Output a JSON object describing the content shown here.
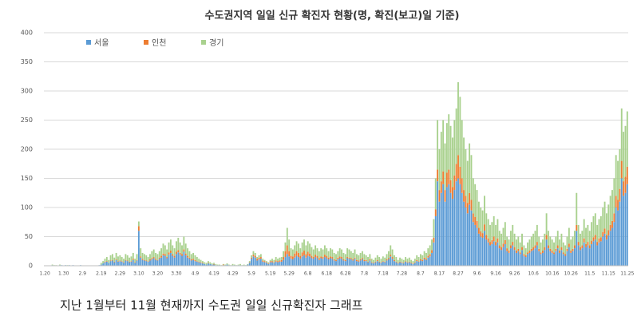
{
  "chart_data": {
    "type": "stacked_bar",
    "title": "수도권지역 일일 신규 확진자 현황(명, 확진(보고)일 기준)",
    "caption": "지난 1월부터 11월 현재까지 수도권 일일 신규확진자 그래프",
    "categories": [
      "1.20",
      null,
      null,
      null,
      null,
      null,
      null,
      null,
      null,
      null,
      "1.30",
      null,
      null,
      null,
      null,
      null,
      null,
      null,
      null,
      null,
      "2.9",
      null,
      null,
      null,
      null,
      null,
      null,
      null,
      null,
      null,
      "2.19",
      null,
      null,
      null,
      null,
      null,
      null,
      null,
      null,
      null,
      "2.29",
      null,
      null,
      null,
      null,
      null,
      null,
      null,
      null,
      null,
      "3.10",
      null,
      null,
      null,
      null,
      null,
      null,
      null,
      null,
      null,
      "3.20",
      null,
      null,
      null,
      null,
      null,
      null,
      null,
      null,
      null,
      "3.30",
      null,
      null,
      null,
      null,
      null,
      null,
      null,
      null,
      null,
      "4.9",
      null,
      null,
      null,
      null,
      null,
      null,
      null,
      null,
      null,
      "4.19",
      null,
      null,
      null,
      null,
      null,
      null,
      null,
      null,
      null,
      "4.29",
      null,
      null,
      null,
      null,
      null,
      null,
      null,
      null,
      null,
      "5.9",
      null,
      null,
      null,
      null,
      null,
      null,
      null,
      null,
      null,
      "5.19",
      null,
      null,
      null,
      null,
      null,
      null,
      null,
      null,
      null,
      "5.29",
      null,
      null,
      null,
      null,
      null,
      null,
      null,
      null,
      null,
      "6.8",
      null,
      null,
      null,
      null,
      null,
      null,
      null,
      null,
      null,
      "6.18",
      null,
      null,
      null,
      null,
      null,
      null,
      null,
      null,
      null,
      "6.28",
      null,
      null,
      null,
      null,
      null,
      null,
      null,
      null,
      null,
      "7.8",
      null,
      null,
      null,
      null,
      null,
      null,
      null,
      null,
      null,
      "7.18",
      null,
      null,
      null,
      null,
      null,
      null,
      null,
      null,
      null,
      "7.28",
      null,
      null,
      null,
      null,
      null,
      null,
      null,
      null,
      null,
      "8.7",
      null,
      null,
      null,
      null,
      null,
      null,
      null,
      null,
      null,
      "8.17",
      null,
      null,
      null,
      null,
      null,
      null,
      null,
      null,
      null,
      "8.27",
      null,
      null,
      null,
      null,
      null,
      null,
      null,
      null,
      null,
      "9.6",
      null,
      null,
      null,
      null,
      null,
      null,
      null,
      null,
      null,
      "9.16",
      null,
      null,
      null,
      null,
      null,
      null,
      null,
      null,
      null,
      "9.26",
      null,
      null,
      null,
      null,
      null,
      null,
      null,
      null,
      null,
      "10.6",
      null,
      null,
      null,
      null,
      null,
      null,
      null,
      null,
      null,
      "10.16",
      null,
      null,
      null,
      null,
      null,
      null,
      null,
      null,
      null,
      "10.26",
      null,
      null,
      null,
      null,
      null,
      null,
      null,
      null,
      null,
      "11.5",
      null,
      null,
      null,
      null,
      null,
      null,
      null,
      null,
      null,
      "11.15",
      null,
      null,
      null,
      null,
      null,
      null,
      null,
      null,
      null,
      "11.25"
    ],
    "series": [
      {
        "name": "서울",
        "color": "#5b9bd5",
        "values": [
          0,
          0,
          0,
          0,
          1,
          0,
          0,
          0,
          1,
          1,
          0,
          1,
          0,
          1,
          0,
          1,
          0,
          0,
          0,
          1,
          0,
          0,
          0,
          0,
          0,
          0,
          0,
          0,
          0,
          1,
          2,
          4,
          6,
          7,
          5,
          8,
          9,
          6,
          10,
          7,
          8,
          7,
          5,
          9,
          8,
          6,
          7,
          10,
          5,
          9,
          60,
          14,
          10,
          9,
          8,
          7,
          9,
          11,
          13,
          10,
          9,
          12,
          14,
          18,
          17,
          13,
          19,
          22,
          17,
          14,
          20,
          23,
          19,
          17,
          24,
          18,
          14,
          12,
          9,
          10,
          8,
          7,
          6,
          5,
          4,
          3,
          2,
          4,
          3,
          2,
          2,
          1,
          1,
          1,
          0,
          1,
          1,
          2,
          1,
          0,
          1,
          1,
          0,
          1,
          1,
          0,
          1,
          0,
          2,
          5,
          12,
          16,
          14,
          9,
          11,
          12,
          7,
          6,
          5,
          3,
          6,
          6,
          5,
          7,
          6,
          7,
          7,
          10,
          15,
          20,
          16,
          12,
          11,
          14,
          17,
          15,
          12,
          16,
          18,
          14,
          17,
          16,
          13,
          12,
          15,
          13,
          10,
          13,
          12,
          15,
          13,
          11,
          13,
          12,
          9,
          8,
          11,
          13,
          12,
          9,
          8,
          13,
          12,
          11,
          9,
          12,
          8,
          7,
          9,
          11,
          8,
          8,
          6,
          9,
          5,
          4,
          6,
          8,
          6,
          5,
          7,
          6,
          9,
          11,
          16,
          12,
          8,
          6,
          4,
          6,
          5,
          4,
          7,
          5,
          6,
          4,
          3,
          5,
          8,
          7,
          9,
          8,
          11,
          10,
          14,
          16,
          22,
          40,
          85,
          145,
          110,
          125,
          140,
          110,
          135,
          140,
          125,
          115,
          130,
          145,
          150,
          140,
          125,
          110,
          100,
          90,
          105,
          95,
          75,
          70,
          65,
          55,
          50,
          48,
          60,
          45,
          40,
          35,
          37,
          42,
          35,
          40,
          30,
          27,
          32,
          37,
          25,
          22,
          30,
          35,
          27,
          22,
          25,
          20,
          27,
          17,
          15,
          20,
          22,
          25,
          27,
          30,
          35,
          25,
          20,
          22,
          27,
          45,
          30,
          25,
          22,
          20,
          25,
          30,
          22,
          27,
          20,
          17,
          25,
          32,
          22,
          25,
          30,
          60,
          35,
          27,
          30,
          40,
          32,
          35,
          30,
          37,
          42,
          45,
          35,
          40,
          42,
          50,
          55,
          45,
          52,
          60,
          65,
          75,
          100,
          95,
          110,
          150,
          120,
          125,
          140
        ]
      },
      {
        "name": "인천",
        "color": "#ed7d31",
        "values": [
          0,
          0,
          0,
          0,
          0,
          0,
          0,
          0,
          0,
          0,
          0,
          0,
          0,
          0,
          0,
          0,
          0,
          0,
          0,
          0,
          0,
          0,
          0,
          0,
          0,
          0,
          0,
          0,
          0,
          0,
          0,
          0,
          1,
          1,
          0,
          1,
          1,
          1,
          1,
          1,
          1,
          1,
          1,
          1,
          1,
          1,
          1,
          2,
          1,
          1,
          8,
          2,
          2,
          1,
          1,
          1,
          2,
          2,
          2,
          2,
          1,
          2,
          3,
          3,
          3,
          2,
          4,
          4,
          3,
          3,
          4,
          4,
          3,
          3,
          4,
          3,
          3,
          2,
          2,
          2,
          2,
          1,
          1,
          1,
          1,
          0,
          0,
          1,
          0,
          0,
          1,
          0,
          0,
          0,
          0,
          1,
          0,
          0,
          0,
          0,
          0,
          0,
          0,
          0,
          0,
          0,
          0,
          0,
          0,
          1,
          2,
          3,
          3,
          3,
          3,
          3,
          2,
          2,
          1,
          1,
          2,
          2,
          1,
          2,
          2,
          2,
          3,
          5,
          10,
          15,
          9,
          5,
          5,
          7,
          8,
          7,
          5,
          7,
          8,
          6,
          7,
          5,
          4,
          3,
          4,
          4,
          3,
          3,
          3,
          4,
          4,
          3,
          3,
          3,
          2,
          2,
          3,
          3,
          3,
          2,
          2,
          2,
          2,
          2,
          2,
          2,
          2,
          2,
          2,
          2,
          2,
          2,
          1,
          2,
          1,
          1,
          1,
          2,
          1,
          1,
          1,
          1,
          2,
          2,
          3,
          3,
          2,
          1,
          1,
          1,
          1,
          1,
          1,
          1,
          1,
          1,
          1,
          1,
          2,
          1,
          2,
          2,
          3,
          2,
          3,
          4,
          5,
          8,
          12,
          20,
          20,
          20,
          22,
          20,
          25,
          25,
          22,
          20,
          25,
          30,
          40,
          30,
          25,
          20,
          20,
          18,
          20,
          18,
          15,
          14,
          12,
          10,
          9,
          8,
          11,
          8,
          7,
          6,
          7,
          8,
          6,
          7,
          5,
          5,
          6,
          7,
          5,
          4,
          5,
          6,
          5,
          4,
          4,
          3,
          5,
          3,
          3,
          3,
          4,
          4,
          5,
          5,
          6,
          4,
          3,
          4,
          5,
          8,
          5,
          4,
          4,
          3,
          4,
          5,
          4,
          5,
          3,
          3,
          4,
          6,
          4,
          4,
          5,
          10,
          6,
          5,
          5,
          7,
          5,
          6,
          5,
          6,
          7,
          8,
          6,
          7,
          7,
          8,
          9,
          8,
          9,
          10,
          12,
          15,
          20,
          18,
          22,
          30,
          25,
          28,
          30
        ]
      },
      {
        "name": "경기",
        "color": "#a9d18e",
        "values": [
          0,
          0,
          0,
          0,
          1,
          1,
          1,
          0,
          1,
          0,
          0,
          0,
          1,
          0,
          0,
          0,
          0,
          0,
          0,
          0,
          0,
          0,
          0,
          0,
          0,
          0,
          0,
          0,
          0,
          0,
          3,
          4,
          5,
          7,
          5,
          9,
          10,
          7,
          11,
          8,
          9,
          7,
          6,
          10,
          9,
          7,
          8,
          10,
          6,
          10,
          8,
          14,
          10,
          10,
          9,
          7,
          9,
          12,
          13,
          10,
          10,
          11,
          13,
          17,
          15,
          13,
          17,
          19,
          15,
          13,
          18,
          21,
          18,
          15,
          22,
          17,
          13,
          11,
          9,
          10,
          8,
          7,
          5,
          4,
          3,
          3,
          3,
          3,
          3,
          2,
          2,
          2,
          1,
          1,
          1,
          1,
          1,
          2,
          1,
          1,
          2,
          1,
          1,
          1,
          2,
          1,
          1,
          1,
          1,
          2,
          4,
          6,
          5,
          3,
          4,
          5,
          3,
          2,
          2,
          2,
          2,
          4,
          4,
          6,
          4,
          5,
          5,
          10,
          15,
          30,
          20,
          13,
          12,
          14,
          17,
          16,
          13,
          17,
          19,
          15,
          18,
          17,
          15,
          13,
          16,
          13,
          12,
          14,
          13,
          16,
          13,
          11,
          14,
          13,
          11,
          10,
          11,
          14,
          13,
          11,
          10,
          15,
          14,
          12,
          11,
          14,
          10,
          9,
          11,
          12,
          10,
          8,
          8,
          9,
          6,
          5,
          7,
          8,
          8,
          6,
          8,
          7,
          9,
          12,
          16,
          13,
          8,
          8,
          5,
          7,
          6,
          5,
          7,
          6,
          7,
          5,
          4,
          6,
          8,
          7,
          9,
          8,
          11,
          10,
          13,
          15,
          18,
          32,
          53,
          85,
          70,
          85,
          88,
          80,
          85,
          95,
          93,
          85,
          95,
          95,
          125,
          120,
          100,
          90,
          80,
          72,
          85,
          77,
          60,
          56,
          53,
          45,
          41,
          39,
          49,
          37,
          33,
          29,
          31,
          35,
          29,
          33,
          25,
          23,
          27,
          31,
          20,
          19,
          25,
          29,
          23,
          19,
          21,
          17,
          23,
          15,
          12,
          17,
          19,
          21,
          23,
          25,
          29,
          21,
          17,
          19,
          23,
          37,
          25,
          21,
          19,
          17,
          21,
          25,
          19,
          23,
          17,
          15,
          21,
          27,
          19,
          21,
          25,
          55,
          29,
          23,
          25,
          33,
          28,
          29,
          25,
          32,
          36,
          37,
          29,
          33,
          36,
          42,
          46,
          37,
          44,
          50,
          53,
          60,
          70,
          67,
          68,
          90,
          85,
          87,
          95
        ]
      }
    ],
    "ylim": [
      0,
      400
    ],
    "yticks": [
      0,
      50,
      100,
      150,
      200,
      250,
      300,
      350,
      400
    ],
    "grid": true,
    "legend": "top-left"
  }
}
